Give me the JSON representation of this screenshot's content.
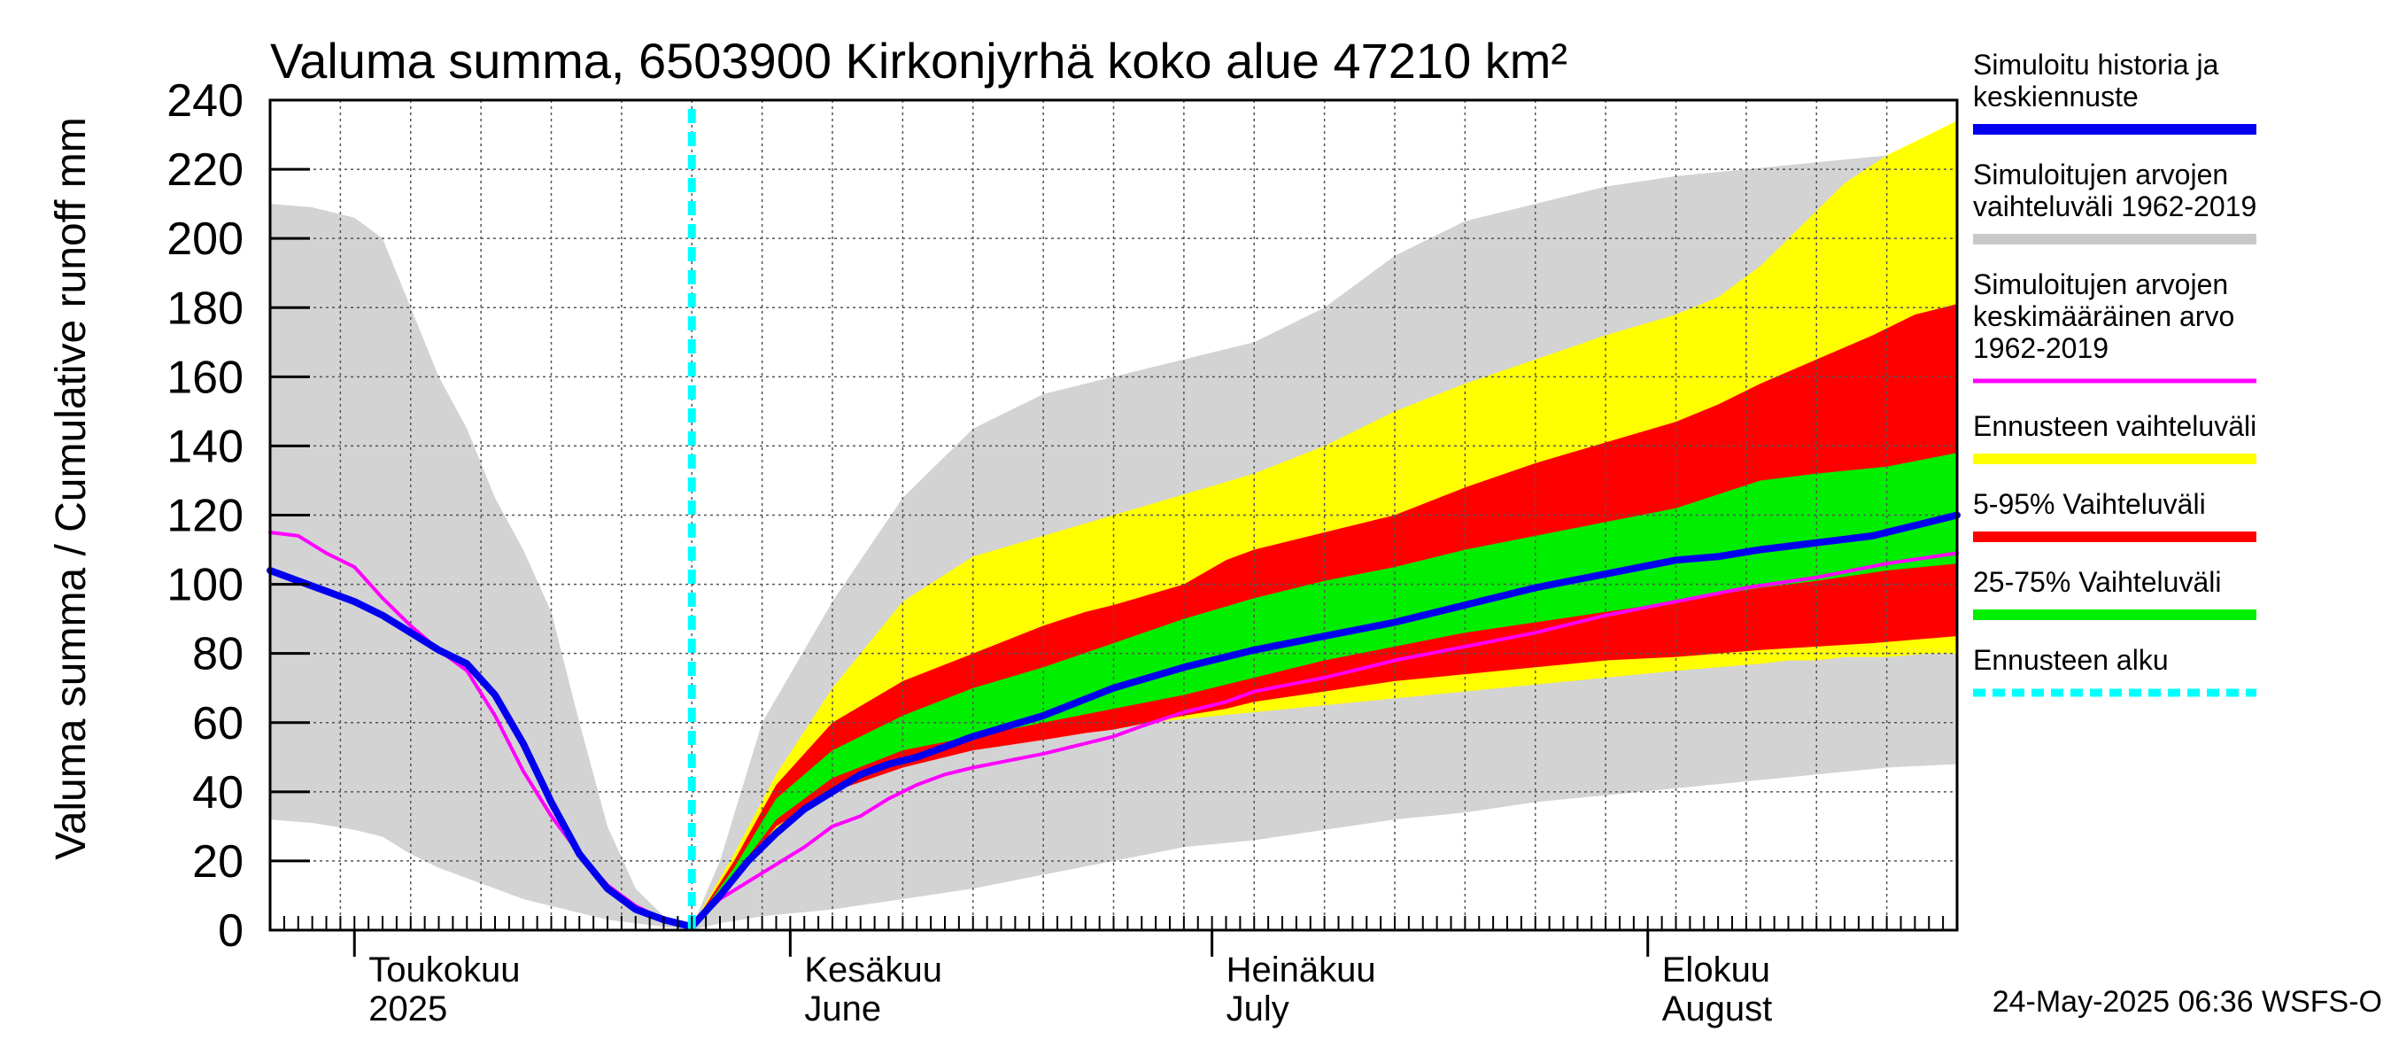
{
  "chart_data": {
    "type": "area",
    "title": "Valuma summa, 6503900 Kirkonjyrhä koko alue 47210 km²",
    "ylabel": "Valuma summa / Cumulative runoff    mm",
    "ylim": [
      0,
      240
    ],
    "yticks": [
      0,
      20,
      40,
      60,
      80,
      100,
      120,
      140,
      160,
      180,
      200,
      220,
      240
    ],
    "xlim": [
      0,
      120
    ],
    "forecast_start_day": 30,
    "months": [
      {
        "line1": "Toukokuu",
        "line2": "2025",
        "start_day": 6
      },
      {
        "line1": "Kesäkuu",
        "line2": "June",
        "start_day": 37
      },
      {
        "line1": "Heinäkuu",
        "line2": "July",
        "start_day": 67
      },
      {
        "line1": "Elokuu",
        "line2": "August",
        "start_day": 98
      }
    ],
    "series": [
      {
        "name": "Simuloitujen arvojen vaihteluväli 1962-2019",
        "kind": "band",
        "color": "#d3d3d3",
        "x": [
          0,
          3,
          6,
          8,
          10,
          12,
          14,
          16,
          18,
          20,
          22,
          24,
          26,
          28,
          30,
          32,
          35,
          40,
          45,
          50,
          55,
          60,
          65,
          70,
          75,
          80,
          85,
          90,
          95,
          100,
          105,
          110,
          115,
          120
        ],
        "upper": [
          210,
          209,
          206,
          200,
          180,
          160,
          145,
          125,
          110,
          92,
          60,
          30,
          12,
          4,
          1,
          20,
          60,
          95,
          125,
          145,
          155,
          160,
          165,
          170,
          180,
          195,
          205,
          210,
          215,
          218,
          220,
          222,
          224,
          225
        ],
        "lower": [
          32,
          31,
          29,
          27,
          22,
          18,
          15,
          12,
          9,
          7,
          5,
          3,
          2,
          1,
          0,
          2,
          4,
          6,
          9,
          12,
          16,
          20,
          24,
          26,
          29,
          32,
          34,
          37,
          39,
          41,
          43,
          45,
          47,
          48
        ]
      },
      {
        "name": "Ennusteen vaihteluväli",
        "kind": "band",
        "color": "#ffff00",
        "x": [
          30,
          33,
          36,
          40,
          45,
          50,
          55,
          60,
          65,
          70,
          75,
          80,
          85,
          90,
          95,
          100,
          103,
          106,
          108,
          110,
          112,
          115,
          118,
          120
        ],
        "upper": [
          1,
          22,
          45,
          70,
          95,
          108,
          114,
          120,
          126,
          132,
          140,
          150,
          158,
          165,
          172,
          178,
          183,
          192,
          200,
          208,
          216,
          224,
          230,
          234
        ],
        "lower": [
          0,
          14,
          28,
          42,
          50,
          54,
          57,
          59,
          61,
          63,
          65,
          67,
          69,
          71,
          73,
          75,
          76,
          77,
          78,
          78,
          79,
          79,
          80,
          80
        ]
      },
      {
        "name": "5-95% Vaihteluväli",
        "kind": "band",
        "color": "#ff0000",
        "x": [
          30,
          33,
          36,
          40,
          45,
          50,
          55,
          58,
          60,
          65,
          68,
          70,
          75,
          80,
          85,
          90,
          95,
          100,
          103,
          106,
          110,
          114,
          117,
          120
        ],
        "upper": [
          1,
          20,
          42,
          60,
          72,
          80,
          88,
          92,
          94,
          100,
          107,
          110,
          115,
          120,
          128,
          135,
          141,
          147,
          152,
          158,
          165,
          172,
          178,
          181
        ],
        "lower": [
          0,
          15,
          30,
          40,
          47,
          52,
          55,
          57,
          58,
          62,
          64,
          66,
          69,
          72,
          74,
          76,
          78,
          79,
          80,
          81,
          82,
          83,
          84,
          85
        ]
      },
      {
        "name": "25-75% Vaihteluväli",
        "kind": "band",
        "color": "#00ee00",
        "x": [
          30,
          33,
          36,
          40,
          45,
          50,
          55,
          60,
          65,
          70,
          75,
          80,
          85,
          90,
          95,
          100,
          103,
          106,
          110,
          115,
          120
        ],
        "upper": [
          1,
          18,
          38,
          52,
          62,
          70,
          76,
          83,
          90,
          96,
          101,
          105,
          110,
          114,
          118,
          122,
          126,
          130,
          132,
          134,
          138
        ],
        "lower": [
          0,
          16,
          32,
          44,
          52,
          56,
          60,
          64,
          68,
          73,
          78,
          82,
          86,
          89,
          92,
          95,
          97,
          99,
          101,
          104,
          106
        ]
      },
      {
        "name": "Simuloitujen arvojen keskimääräinen arvo 1962-2019",
        "kind": "line",
        "color": "#ff00ff",
        "x": [
          0,
          2,
          4,
          6,
          8,
          10,
          12,
          14,
          16,
          18,
          20,
          22,
          24,
          26,
          28,
          30,
          32,
          34,
          36,
          38,
          40,
          42,
          44,
          46,
          48,
          50,
          55,
          60,
          62,
          65,
          68,
          70,
          75,
          80,
          85,
          90,
          95,
          100,
          105,
          110,
          115,
          120
        ],
        "values": [
          115,
          114,
          109,
          105,
          96,
          88,
          81,
          75,
          62,
          46,
          33,
          22,
          13,
          7,
          3,
          1,
          9,
          14,
          19,
          24,
          30,
          33,
          38,
          42,
          45,
          47,
          51,
          56,
          59,
          63,
          66,
          69,
          73,
          78,
          82,
          86,
          91,
          95,
          99,
          102,
          106,
          109
        ]
      },
      {
        "name": "Simuloitu historia ja keskiennuste",
        "kind": "line",
        "color": "#0000ee",
        "x": [
          0,
          2,
          4,
          6,
          8,
          10,
          12,
          14,
          16,
          18,
          20,
          22,
          24,
          26,
          28,
          30,
          32,
          34,
          36,
          38,
          40,
          42,
          44,
          46,
          48,
          50,
          55,
          60,
          65,
          70,
          75,
          80,
          85,
          90,
          95,
          100,
          103,
          106,
          110,
          114,
          117,
          120
        ],
        "values": [
          104,
          101,
          98,
          95,
          91,
          86,
          81,
          77,
          68,
          54,
          37,
          22,
          12,
          6,
          3,
          1,
          10,
          20,
          28,
          35,
          40,
          45,
          48,
          50,
          53,
          56,
          62,
          70,
          76,
          81,
          85,
          89,
          94,
          99,
          103,
          107,
          108,
          110,
          112,
          114,
          117,
          120
        ]
      }
    ],
    "legend": [
      {
        "lines": [
          "Simuloitu historia ja",
          "keskiennuste"
        ],
        "color": "#0000ee",
        "style": "solid"
      },
      {
        "lines": [
          "Simuloitujen arvojen",
          "vaihteluväli 1962-2019"
        ],
        "color": "#c8c8c8",
        "style": "solid"
      },
      {
        "lines": [
          "Simuloitujen arvojen",
          "keskimääräinen arvo",
          "   1962-2019"
        ],
        "color": "#ff00ff",
        "style": "thin"
      },
      {
        "lines": [
          "Ennusteen vaihteluväli"
        ],
        "color": "#ffff00",
        "style": "solid"
      },
      {
        "lines": [
          "5-95% Vaihteluväli"
        ],
        "color": "#ff0000",
        "style": "solid"
      },
      {
        "lines": [
          "25-75% Vaihteluväli"
        ],
        "color": "#00ee00",
        "style": "solid"
      },
      {
        "lines": [
          "Ennusteen alku"
        ],
        "color": "#00ffff",
        "style": "dashed"
      }
    ],
    "footer": "24-May-2025 06:36 WSFS-O"
  }
}
